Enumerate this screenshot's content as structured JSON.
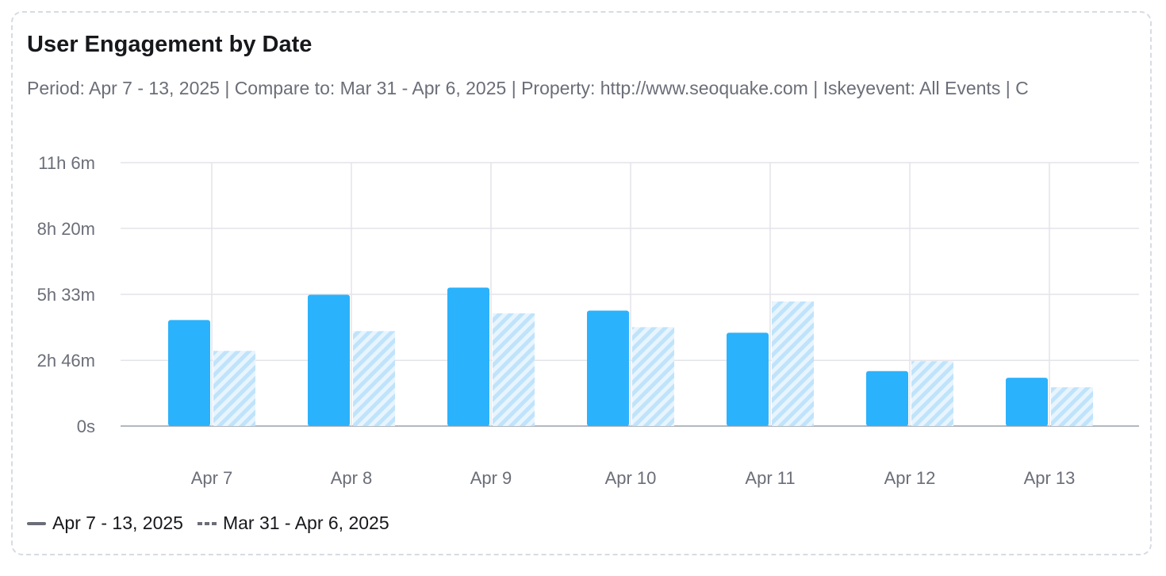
{
  "header": {
    "title": "User Engagement by Date",
    "subtitle": "Period: Apr 7 - 13, 2025 | Compare to: Mar 31 - Apr 6, 2025 | Property: http://www.seoquake.com | Iskeyevent: All Events | C"
  },
  "colors": {
    "current": "#2bb2fc",
    "previous": "#cdeafd",
    "grid": "#e3e4ea",
    "axis": "#9aa0ab"
  },
  "chart_data": {
    "type": "bar",
    "title": "User Engagement by Date",
    "categories": [
      "Apr 7",
      "Apr 8",
      "Apr 9",
      "Apr 10",
      "Apr 11",
      "Apr 12",
      "Apr 13"
    ],
    "y_ticks": [
      {
        "label": "0s",
        "value": 0
      },
      {
        "label": "2h 46m",
        "value": 166
      },
      {
        "label": "5h 33m",
        "value": 333
      },
      {
        "label": "8h 20m",
        "value": 500
      },
      {
        "label": "11h 6m",
        "value": 666
      }
    ],
    "ylim": [
      0,
      666
    ],
    "y_unit": "minutes",
    "grid": true,
    "legend_position": "bottom-left",
    "series": [
      {
        "name": "Apr 7 - 13, 2025",
        "style": "solid",
        "values": [
          268,
          332,
          350,
          292,
          236,
          139,
          122
        ]
      },
      {
        "name": "Mar 31 - Apr 6, 2025",
        "style": "hatched",
        "values": [
          190,
          240,
          285,
          250,
          315,
          164,
          98
        ]
      }
    ]
  }
}
